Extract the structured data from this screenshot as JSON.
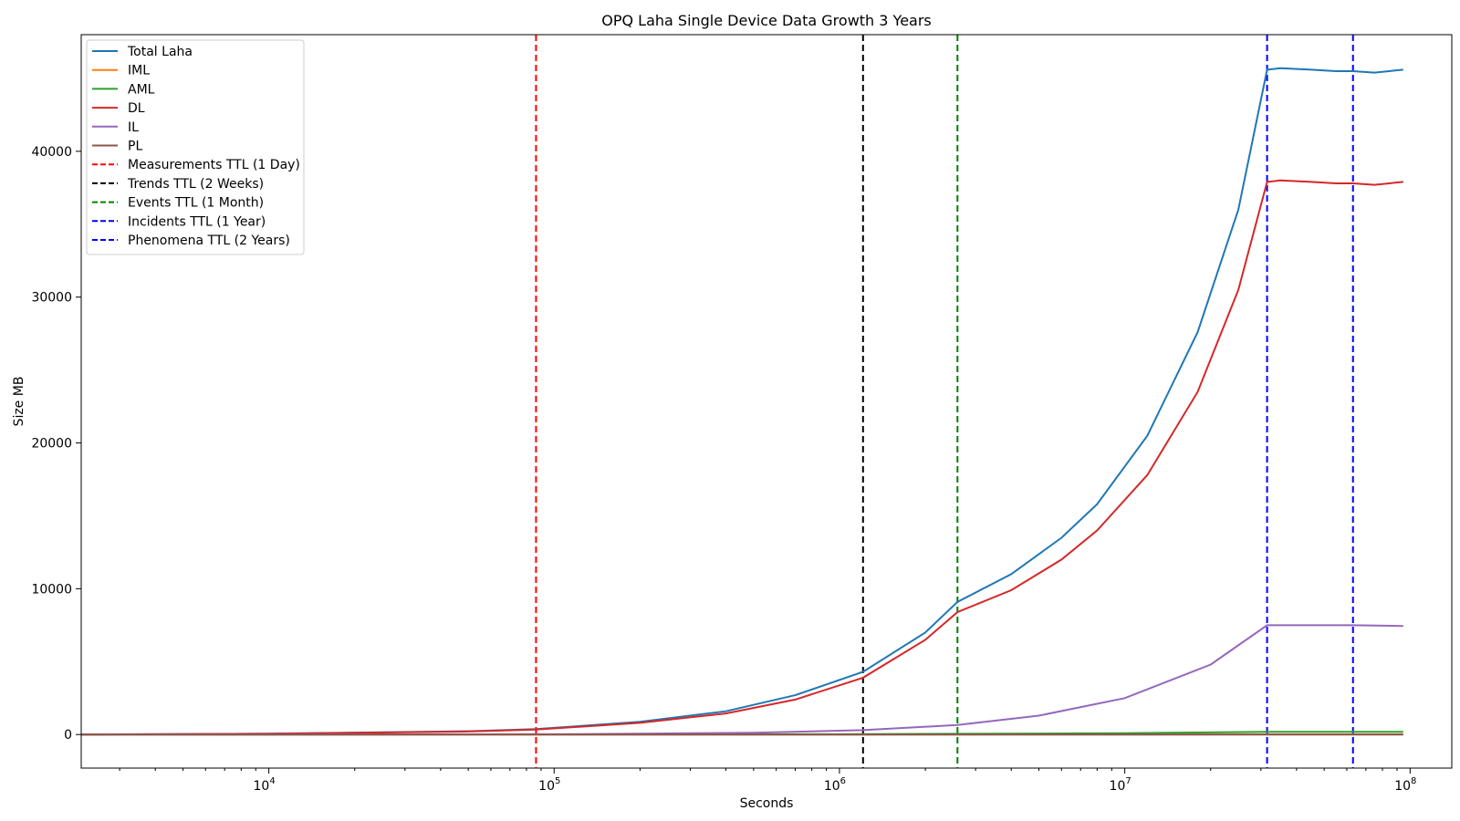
{
  "chart_data": {
    "type": "line",
    "title": "OPQ Laha Single Device Data Growth 3 Years",
    "xlabel": "Seconds",
    "ylabel": "Size MB",
    "xscale": "log",
    "xlim": [
      2200,
      140000000
    ],
    "ylim": [
      -2300,
      48000
    ],
    "grid": false,
    "legend_position": "top-left",
    "x_ticks": [
      {
        "value": 10000,
        "base": "10",
        "exp": "4"
      },
      {
        "value": 100000,
        "base": "10",
        "exp": "5"
      },
      {
        "value": 1000000,
        "base": "10",
        "exp": "6"
      },
      {
        "value": 10000000,
        "base": "10",
        "exp": "7"
      },
      {
        "value": 100000000,
        "base": "10",
        "exp": "8"
      }
    ],
    "y_ticks": [
      {
        "value": 0,
        "label": "0"
      },
      {
        "value": 10000,
        "label": "10000"
      },
      {
        "value": 20000,
        "label": "20000"
      },
      {
        "value": 30000,
        "label": "30000"
      },
      {
        "value": 40000,
        "label": "40000"
      }
    ],
    "series": [
      {
        "name": "Total Laha",
        "color": "#1f77b4",
        "style": "solid",
        "x": [
          2200,
          10000,
          50000,
          86400,
          200000,
          400000,
          700000,
          1209600,
          2000000,
          2592000,
          4000000,
          6000000,
          8000000,
          12000000,
          18000000,
          25000000,
          31536000,
          35000000,
          45000000,
          55000000,
          63072000,
          75000000,
          94608000
        ],
        "y": [
          0,
          60,
          230,
          370,
          880,
          1600,
          2700,
          4300,
          7000,
          9100,
          11000,
          13500,
          15800,
          20500,
          27600,
          36000,
          45600,
          45700,
          45600,
          45500,
          45500,
          45400,
          45600
        ]
      },
      {
        "name": "IML",
        "color": "#ff7f0e",
        "style": "solid",
        "x": [
          2200,
          1000000,
          10000000,
          31536000,
          94608000
        ],
        "y": [
          0,
          5,
          10,
          15,
          15
        ]
      },
      {
        "name": "AML",
        "color": "#2ca02c",
        "style": "solid",
        "x": [
          2200,
          1000000,
          10000000,
          31536000,
          94608000
        ],
        "y": [
          0,
          20,
          90,
          190,
          190
        ]
      },
      {
        "name": "DL",
        "color": "#d62728",
        "style": "solid",
        "x": [
          2200,
          10000,
          50000,
          86400,
          200000,
          400000,
          700000,
          1209600,
          2000000,
          2592000,
          4000000,
          6000000,
          8000000,
          12000000,
          18000000,
          25000000,
          31536000,
          35000000,
          45000000,
          55000000,
          63072000,
          75000000,
          94608000
        ],
        "y": [
          0,
          55,
          210,
          340,
          800,
          1450,
          2400,
          3900,
          6500,
          8400,
          9900,
          12000,
          14000,
          17800,
          23500,
          30500,
          37900,
          38000,
          37900,
          37800,
          37800,
          37700,
          37900
        ]
      },
      {
        "name": "IL",
        "color": "#9467bd",
        "style": "solid",
        "x": [
          2200,
          100000,
          500000,
          1209600,
          2592000,
          5000000,
          10000000,
          20000000,
          31536000,
          63072000,
          94608000
        ],
        "y": [
          0,
          20,
          120,
          300,
          650,
          1300,
          2500,
          4800,
          7500,
          7500,
          7450
        ]
      },
      {
        "name": "PL",
        "color": "#8c564b",
        "style": "solid",
        "x": [
          2200,
          1000000,
          31536000,
          94608000
        ],
        "y": [
          0,
          1,
          3,
          3
        ]
      },
      {
        "name": "Measurements TTL (1 Day)",
        "color": "#ff0000",
        "style": "dashed",
        "vline": 86400
      },
      {
        "name": "Trends TTL (2 Weeks)",
        "color": "#000000",
        "style": "dashed",
        "vline": 1209600
      },
      {
        "name": "Events TTL (1 Month)",
        "color": "#008000",
        "style": "dashed",
        "vline": 2592000
      },
      {
        "name": "Incidents TTL (1 Year)",
        "color": "#0000ff",
        "style": "dashed",
        "vline": 31536000
      },
      {
        "name": "Phenomena TTL (2 Years)",
        "color": "#0000ff",
        "style": "dashed",
        "vline": 63072000
      }
    ]
  }
}
